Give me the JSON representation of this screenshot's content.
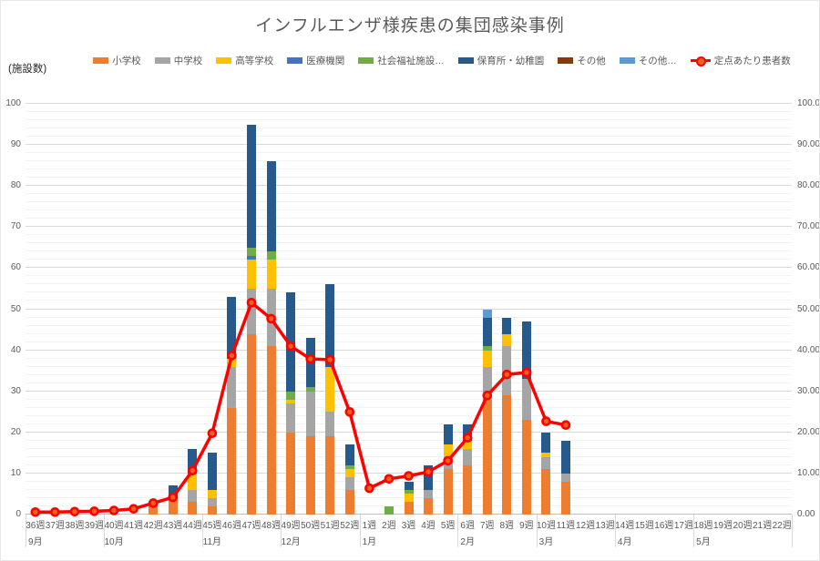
{
  "title": "インフルエンザ様疾患の集団感染事例",
  "axis_unit_label": "(施設数)",
  "legend": {
    "items": [
      {
        "label": "小学校",
        "color": "#ED7D31",
        "type": "box"
      },
      {
        "label": "中学校",
        "color": "#A5A5A5",
        "type": "box"
      },
      {
        "label": "高等学校",
        "color": "#FFC000",
        "type": "box"
      },
      {
        "label": "医療機関",
        "color": "#4472C4",
        "type": "box"
      },
      {
        "label": "社会福祉施設…",
        "color": "#70AD47",
        "type": "box"
      },
      {
        "label": "保育所・幼稚園",
        "color": "#275A8C",
        "type": "box"
      },
      {
        "label": "その他",
        "color": "#843C0C",
        "type": "box"
      },
      {
        "label": "その他…",
        "color": "#5B9BD5",
        "type": "box"
      },
      {
        "label": "定点あたり患者数",
        "color": "#FF0000",
        "type": "line-marker"
      }
    ]
  },
  "chart_data": {
    "type": "bar",
    "subtype": "stacked-bar-with-line",
    "title": "インフルエンザ様疾患の集団感染事例",
    "ylabel_left": "(施設数)",
    "ylim": [
      0,
      100
    ],
    "grid": "horizontal major every 10, minor every 2",
    "legend_position": "top",
    "categories": [
      "36週",
      "37週",
      "38週",
      "39週",
      "40週",
      "41週",
      "42週",
      "43週",
      "44週",
      "45週",
      "46週",
      "47週",
      "48週",
      "49週",
      "50週",
      "51週",
      "52週",
      "1週",
      "2週",
      "3週",
      "4週",
      "5週",
      "6週",
      "7週",
      "8週",
      "9週",
      "10週",
      "11週",
      "12週",
      "13週",
      "14週",
      "15週",
      "16週",
      "17週",
      "18週",
      "19週",
      "20週",
      "21週",
      "22週"
    ],
    "month_groups": [
      {
        "label": "9月",
        "weeks": 4
      },
      {
        "label": "10月",
        "weeks": 5
      },
      {
        "label": "11月",
        "weeks": 4
      },
      {
        "label": "12月",
        "weeks": 4
      },
      {
        "label": "1月",
        "weeks": 5
      },
      {
        "label": "2月",
        "weeks": 4
      },
      {
        "label": "3月",
        "weeks": 4
      },
      {
        "label": "4月",
        "weeks": 4
      },
      {
        "label": "5月",
        "weeks": 5
      }
    ],
    "series": [
      {
        "name": "小学校",
        "color": "#ED7D31",
        "values": [
          0,
          0,
          0,
          0,
          0,
          0,
          3,
          4,
          3,
          2,
          26,
          44,
          41,
          20,
          19,
          19,
          6,
          0,
          0,
          3,
          4,
          11,
          12,
          28,
          29,
          23,
          11,
          8,
          0,
          0,
          0,
          0,
          0,
          0,
          0,
          0,
          0,
          0,
          0
        ]
      },
      {
        "name": "中学校",
        "color": "#A5A5A5",
        "values": [
          0,
          0,
          0,
          0,
          0,
          0,
          0,
          0,
          3,
          2,
          10,
          11,
          14,
          7,
          11,
          6,
          3,
          0,
          0,
          0,
          2,
          3,
          4,
          8,
          12,
          10,
          3,
          2,
          0,
          0,
          0,
          0,
          0,
          0,
          0,
          0,
          0,
          0,
          0
        ]
      },
      {
        "name": "高等学校",
        "color": "#FFC000",
        "values": [
          0,
          0,
          0,
          0,
          0,
          0,
          0,
          0,
          4,
          2,
          2,
          7,
          7,
          1,
          0,
          11,
          2,
          0,
          0,
          2,
          0,
          3,
          2,
          4,
          3,
          0,
          1,
          0,
          0,
          0,
          0,
          0,
          0,
          0,
          0,
          0,
          0,
          0,
          0
        ]
      },
      {
        "name": "医療機関",
        "color": "#4472C4",
        "values": [
          0,
          0,
          0,
          0,
          0,
          0,
          0,
          0,
          0,
          0,
          0,
          1,
          0,
          0,
          0,
          0,
          0,
          0,
          0,
          0,
          0,
          0,
          0,
          0,
          0,
          0,
          0,
          0,
          0,
          0,
          0,
          0,
          0,
          0,
          0,
          0,
          0,
          0,
          0
        ]
      },
      {
        "name": "社会福祉施設…",
        "color": "#70AD47",
        "values": [
          0,
          0,
          0,
          0,
          0,
          0,
          0,
          0,
          0,
          0,
          0,
          2,
          2,
          2,
          1,
          0,
          1,
          0,
          2,
          1,
          0,
          0,
          0,
          1,
          0,
          0,
          0,
          0,
          0,
          0,
          0,
          0,
          0,
          0,
          0,
          0,
          0,
          0,
          0
        ]
      },
      {
        "name": "保育所・幼稚園",
        "color": "#275A8C",
        "values": [
          0,
          0,
          0,
          0,
          0,
          0,
          0,
          3,
          6,
          9,
          15,
          30,
          22,
          24,
          12,
          20,
          5,
          0,
          0,
          2,
          6,
          5,
          4,
          7,
          4,
          14,
          5,
          8,
          0,
          0,
          0,
          0,
          0,
          0,
          0,
          0,
          0,
          0,
          0
        ]
      },
      {
        "name": "その他",
        "color": "#843C0C",
        "values": [
          0,
          0,
          0,
          0,
          0,
          0,
          0,
          0,
          0,
          0,
          0,
          0,
          0,
          0,
          0,
          0,
          0,
          0,
          0,
          0,
          0,
          0,
          0,
          0,
          0,
          0,
          0,
          0,
          0,
          0,
          0,
          0,
          0,
          0,
          0,
          0,
          0,
          0,
          0
        ]
      },
      {
        "name": "その他…",
        "color": "#5B9BD5",
        "values": [
          0,
          0,
          0,
          0,
          0,
          0,
          0,
          0,
          0,
          0,
          0,
          0,
          0,
          0,
          0,
          0,
          0,
          0,
          0,
          0,
          0,
          0,
          0,
          2,
          0,
          0,
          0,
          0,
          0,
          0,
          0,
          0,
          0,
          0,
          0,
          0,
          0,
          0,
          0
        ]
      }
    ],
    "line_series": {
      "name": "定点あたり患者数",
      "color": "#FF0000",
      "marker_fill": "#E8641B",
      "values": [
        0.6,
        0.6,
        0.7,
        0.8,
        1.0,
        1.4,
        2.8,
        4.2,
        10.7,
        19.8,
        38.7,
        51.6,
        47.7,
        41.0,
        37.9,
        37.7,
        25.0,
        6.4,
        8.7,
        9.4,
        10.4,
        13.1,
        18.7,
        29.0,
        34.1,
        34.6,
        22.7,
        21.8,
        null,
        null,
        null,
        null,
        null,
        null,
        null,
        null,
        null,
        null,
        null
      ]
    },
    "y_left": {
      "ticks": [
        "0",
        "10",
        "20",
        "30",
        "40",
        "50",
        "60",
        "70",
        "80",
        "90",
        "100"
      ],
      "major_step": 10,
      "minor_step": 2
    },
    "y_right": {
      "ticks": [
        "0.00",
        "10.00",
        "20.00",
        "30.00",
        "40.00",
        "50.00",
        "60.00",
        "70.00",
        "80.00",
        "90.00",
        "100.00"
      ]
    }
  }
}
